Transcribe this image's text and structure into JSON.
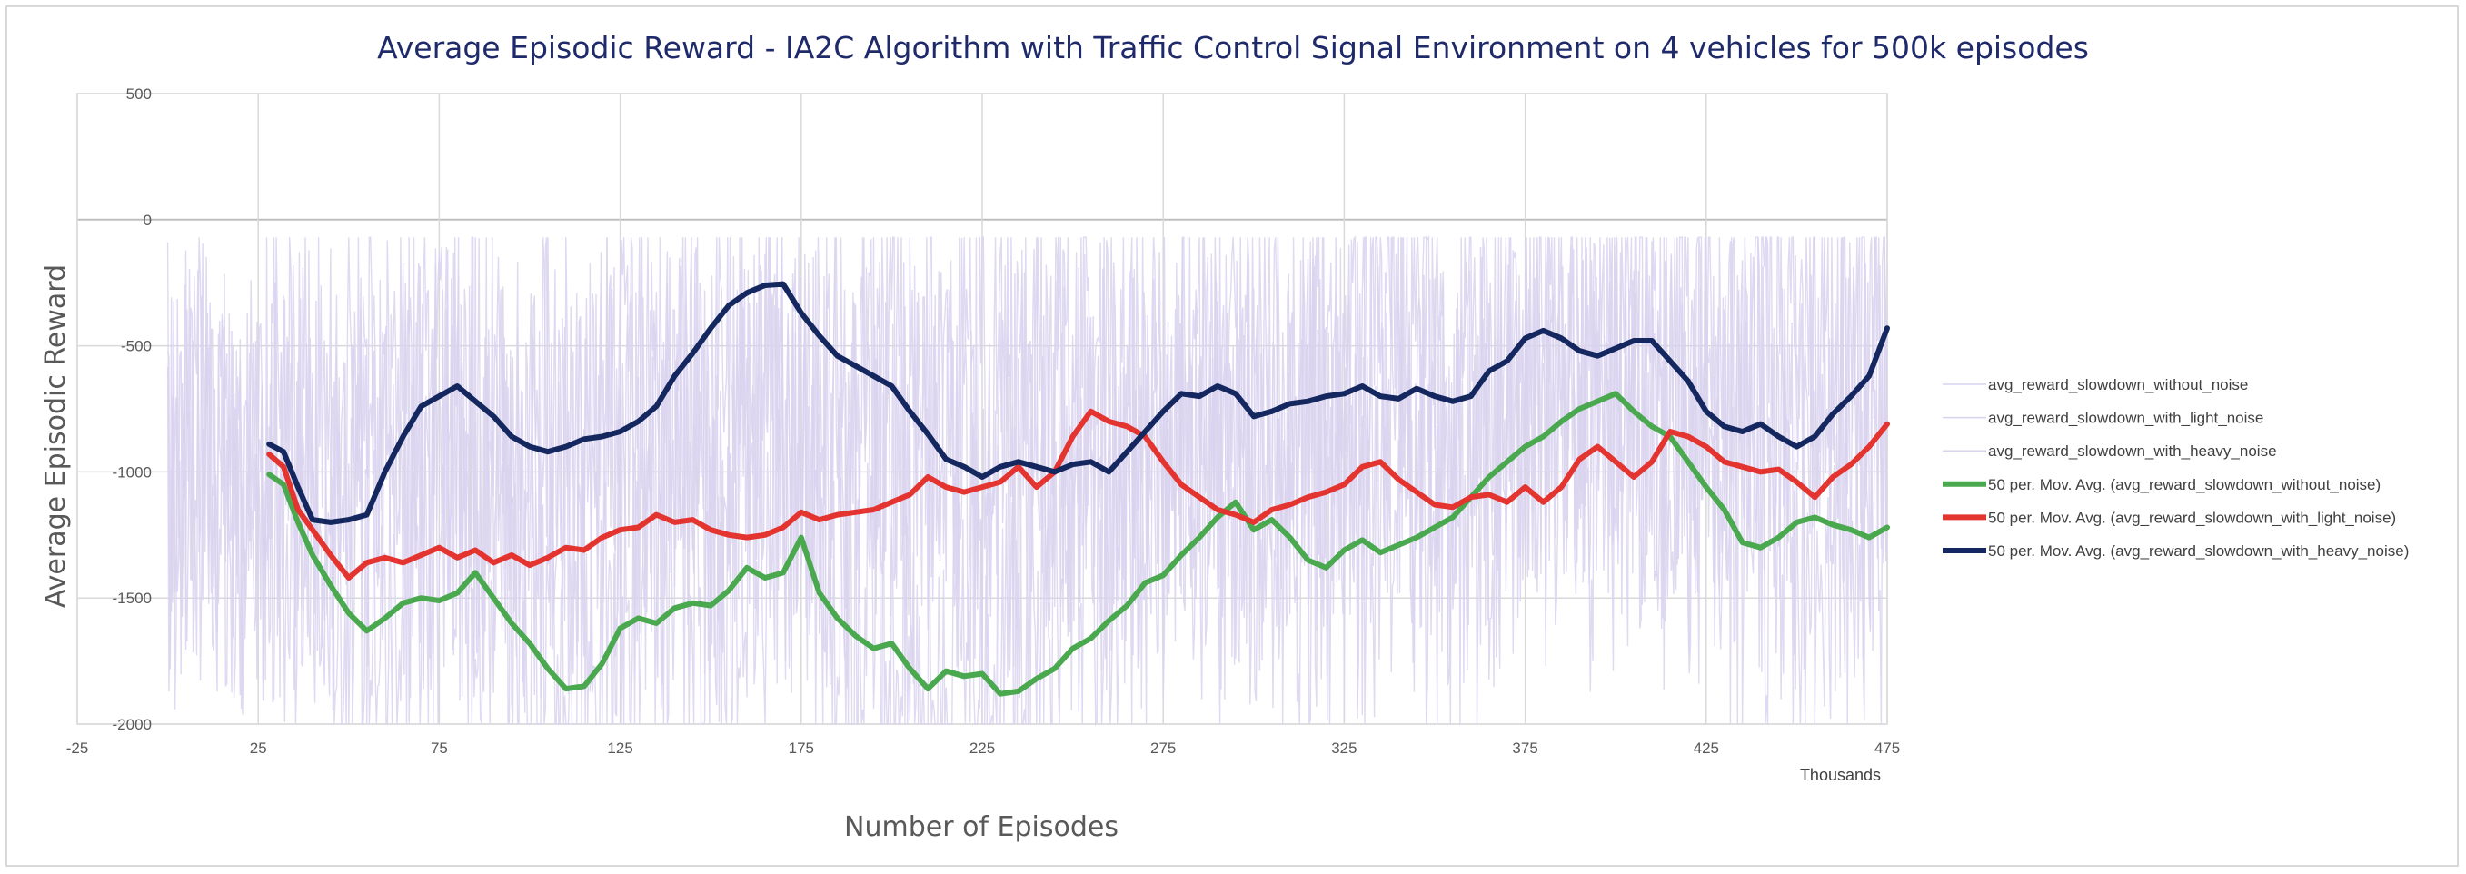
{
  "chart_data": {
    "type": "line",
    "title": "Average Episodic Reward - IA2C Algorithm with Traffic Control Signal Environment on 4 vehicles for 500k episodes",
    "xlabel": "Number of Episodes",
    "ylabel": "Average Episodic Reward",
    "x_unit_label": "Thousands",
    "xlim": [
      -25,
      475
    ],
    "ylim": [
      -2000,
      500
    ],
    "x_ticks": [
      -25,
      25,
      75,
      125,
      175,
      225,
      275,
      325,
      375,
      425,
      475
    ],
    "y_ticks": [
      -2000,
      -1500,
      -1000,
      -500,
      0,
      500
    ],
    "grid": true,
    "legend_position": "right",
    "colors": {
      "raw": "#d9d2ee",
      "without_noise_ma": "#4aa84f",
      "light_noise_ma": "#e3342f",
      "heavy_noise_ma": "#14275f",
      "grid": "#d9d9d9",
      "zero_line": "#bfbfbf",
      "title": "#1f2a6b"
    },
    "series": [
      {
        "name": "avg_reward_slowdown_without_noise",
        "kind": "raw",
        "color": "#d9d2ee",
        "x": [
          0,
          10,
          20,
          30,
          40,
          50,
          60,
          70,
          80,
          90,
          100,
          110,
          120,
          130,
          140,
          150,
          160,
          170,
          180,
          190,
          200,
          210,
          220,
          230,
          240,
          250,
          260,
          270,
          280,
          290,
          300,
          310,
          320,
          330,
          340,
          350,
          360,
          370,
          380,
          390,
          400,
          410,
          420,
          430,
          440,
          450,
          460,
          470,
          475
        ],
        "y": [
          -1000,
          -900,
          -1100,
          -1200,
          -1350,
          -1500,
          -1600,
          -1300,
          -1200,
          -1400,
          -1650,
          -1800,
          -1750,
          -1600,
          -1550,
          -1500,
          -1200,
          -1100,
          -1300,
          -1550,
          -1700,
          -1800,
          -1850,
          -1800,
          -1600,
          -1400,
          -1300,
          -1200,
          -1000,
          -1150,
          -1200,
          -1300,
          -1250,
          -1300,
          -1200,
          -1150,
          -1050,
          -950,
          -850,
          -750,
          -650,
          -800,
          -950,
          -1100,
          -1250,
          -1300,
          -1250,
          -1200,
          -1200
        ]
      },
      {
        "name": "avg_reward_slowdown_with_light_noise",
        "kind": "raw",
        "color": "#d9d2ee",
        "x": [
          0,
          475
        ],
        "y": [
          -1000,
          -800
        ]
      },
      {
        "name": "avg_reward_slowdown_with_heavy_noise",
        "kind": "raw",
        "color": "#d9d2ee",
        "x": [
          0,
          475
        ],
        "y": [
          -900,
          -450
        ]
      },
      {
        "name": "50 per. Mov. Avg. (avg_reward_slowdown_without_noise)",
        "kind": "ma",
        "color": "#4aa84f",
        "x": [
          28,
          32,
          36,
          40,
          45,
          50,
          55,
          60,
          65,
          70,
          75,
          80,
          85,
          90,
          95,
          100,
          105,
          110,
          115,
          120,
          125,
          130,
          135,
          140,
          145,
          150,
          155,
          160,
          165,
          170,
          175,
          180,
          185,
          190,
          195,
          200,
          205,
          210,
          215,
          220,
          225,
          230,
          235,
          240,
          245,
          250,
          255,
          260,
          265,
          270,
          275,
          280,
          285,
          290,
          295,
          300,
          305,
          310,
          315,
          320,
          325,
          330,
          335,
          340,
          345,
          350,
          355,
          360,
          365,
          370,
          375,
          380,
          385,
          390,
          395,
          400,
          405,
          410,
          415,
          420,
          425,
          430,
          435,
          440,
          445,
          450,
          455,
          460,
          465,
          470,
          475
        ],
        "y": [
          -1010,
          -1050,
          -1200,
          -1330,
          -1450,
          -1560,
          -1630,
          -1580,
          -1520,
          -1500,
          -1510,
          -1480,
          -1400,
          -1500,
          -1600,
          -1680,
          -1780,
          -1860,
          -1850,
          -1760,
          -1620,
          -1580,
          -1600,
          -1540,
          -1520,
          -1530,
          -1470,
          -1380,
          -1420,
          -1400,
          -1260,
          -1480,
          -1580,
          -1650,
          -1700,
          -1680,
          -1780,
          -1860,
          -1790,
          -1810,
          -1800,
          -1880,
          -1870,
          -1820,
          -1780,
          -1700,
          -1660,
          -1590,
          -1530,
          -1440,
          -1410,
          -1330,
          -1260,
          -1180,
          -1120,
          -1230,
          -1190,
          -1260,
          -1350,
          -1380,
          -1310,
          -1270,
          -1320,
          -1290,
          -1260,
          -1220,
          -1180,
          -1100,
          -1020,
          -960,
          -900,
          -860,
          -800,
          -750,
          -720,
          -690,
          -760,
          -820,
          -860,
          -960,
          -1060,
          -1150,
          -1280,
          -1300,
          -1260,
          -1200,
          -1180,
          -1210,
          -1230,
          -1260,
          -1220
        ]
      },
      {
        "name": "50 per. Mov. Avg. (avg_reward_slowdown_with_light_noise)",
        "kind": "ma",
        "color": "#e3342f",
        "x": [
          28,
          32,
          36,
          40,
          45,
          50,
          55,
          60,
          65,
          70,
          75,
          80,
          85,
          90,
          95,
          100,
          105,
          110,
          115,
          120,
          125,
          130,
          135,
          140,
          145,
          150,
          155,
          160,
          165,
          170,
          175,
          180,
          185,
          190,
          195,
          200,
          205,
          210,
          215,
          220,
          225,
          230,
          235,
          240,
          245,
          250,
          255,
          260,
          265,
          270,
          275,
          280,
          285,
          290,
          295,
          300,
          305,
          310,
          315,
          320,
          325,
          330,
          335,
          340,
          345,
          350,
          355,
          360,
          365,
          370,
          375,
          380,
          385,
          390,
          395,
          400,
          405,
          410,
          415,
          420,
          425,
          430,
          435,
          440,
          445,
          450,
          455,
          460,
          465,
          470,
          475
        ],
        "y": [
          -930,
          -980,
          -1150,
          -1230,
          -1330,
          -1420,
          -1360,
          -1340,
          -1360,
          -1330,
          -1300,
          -1340,
          -1310,
          -1360,
          -1330,
          -1370,
          -1340,
          -1300,
          -1310,
          -1260,
          -1230,
          -1220,
          -1170,
          -1200,
          -1190,
          -1230,
          -1250,
          -1260,
          -1250,
          -1220,
          -1160,
          -1190,
          -1170,
          -1160,
          -1150,
          -1120,
          -1090,
          -1020,
          -1060,
          -1080,
          -1060,
          -1040,
          -980,
          -1060,
          -1000,
          -860,
          -760,
          -800,
          -820,
          -860,
          -960,
          -1050,
          -1100,
          -1150,
          -1170,
          -1200,
          -1150,
          -1130,
          -1100,
          -1080,
          -1050,
          -980,
          -960,
          -1030,
          -1080,
          -1130,
          -1140,
          -1100,
          -1090,
          -1120,
          -1060,
          -1120,
          -1060,
          -950,
          -900,
          -960,
          -1020,
          -960,
          -840,
          -860,
          -900,
          -960,
          -980,
          -1000,
          -990,
          -1040,
          -1100,
          -1020,
          -970,
          -900,
          -810
        ]
      },
      {
        "name": "50 per. Mov. Avg. (avg_reward_slowdown_with_heavy_noise)",
        "kind": "ma",
        "color": "#14275f",
        "x": [
          28,
          32,
          36,
          40,
          45,
          50,
          55,
          60,
          65,
          70,
          75,
          80,
          85,
          90,
          95,
          100,
          105,
          110,
          115,
          120,
          125,
          130,
          135,
          140,
          145,
          150,
          155,
          160,
          165,
          170,
          175,
          180,
          185,
          190,
          195,
          200,
          205,
          210,
          215,
          220,
          225,
          230,
          235,
          240,
          245,
          250,
          255,
          260,
          265,
          270,
          275,
          280,
          285,
          290,
          295,
          300,
          305,
          310,
          315,
          320,
          325,
          330,
          335,
          340,
          345,
          350,
          355,
          360,
          365,
          370,
          375,
          380,
          385,
          390,
          395,
          400,
          405,
          410,
          415,
          420,
          425,
          430,
          435,
          440,
          445,
          450,
          455,
          460,
          465,
          470,
          475
        ],
        "y": [
          -890,
          -920,
          -1060,
          -1190,
          -1200,
          -1190,
          -1170,
          -1000,
          -860,
          -740,
          -700,
          -660,
          -720,
          -780,
          -860,
          -900,
          -920,
          -900,
          -870,
          -860,
          -840,
          -800,
          -740,
          -620,
          -530,
          -430,
          -340,
          -290,
          -260,
          -255,
          -370,
          -460,
          -540,
          -580,
          -620,
          -660,
          -760,
          -850,
          -950,
          -980,
          -1020,
          -980,
          -960,
          -980,
          -1000,
          -970,
          -960,
          -1000,
          -920,
          -840,
          -760,
          -690,
          -700,
          -660,
          -690,
          -780,
          -760,
          -730,
          -720,
          -700,
          -690,
          -660,
          -700,
          -710,
          -670,
          -700,
          -720,
          -700,
          -600,
          -560,
          -470,
          -440,
          -470,
          -520,
          -540,
          -510,
          -480,
          -480,
          -560,
          -640,
          -760,
          -820,
          -840,
          -810,
          -860,
          -900,
          -860,
          -770,
          -700,
          -620,
          -430
        ]
      }
    ]
  }
}
